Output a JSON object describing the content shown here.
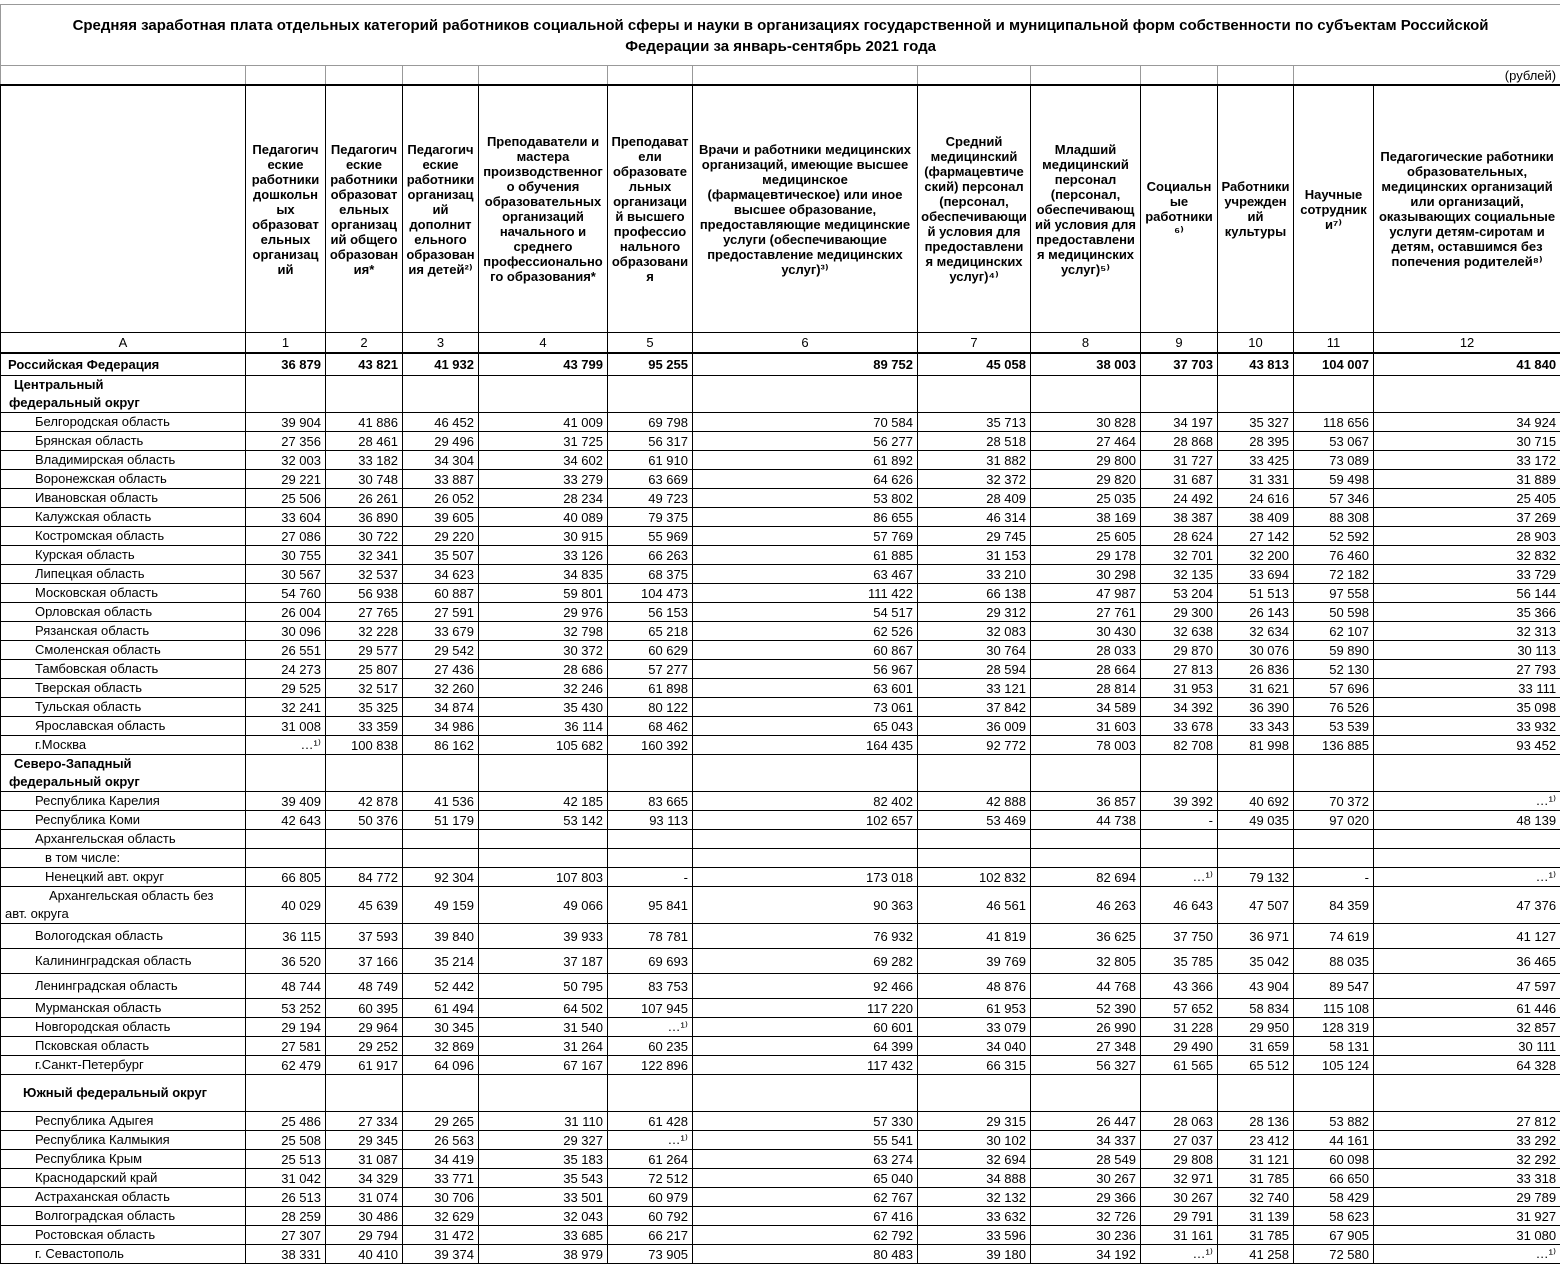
{
  "title": "Средняя заработная плата отдельных категорий работников социальной сферы и науки в организациях государственной и муниципальной форм собственности по субъектам Российской Федерации за январь-сентябрь 2021 года",
  "unit_note": "(рублей)",
  "table": {
    "index_row": [
      "А",
      "1",
      "2",
      "3",
      "4",
      "5",
      "6",
      "7",
      "8",
      "9",
      "10",
      "11",
      "12"
    ],
    "columns": [
      "Педагогические работники дошкольных образовательных организаций",
      "Педагогические работники образовательных организаций общего образования*",
      "Педагогические работники организаций дополнительного образования детей²⁾",
      "Преподаватели и мастера производственного обучения образовательных организаций начального и среднего профессионального образования*",
      "Преподаватели образовательных организаций высшего профессионального образования",
      "Врачи и работники медицинских организаций, имеющие высшее медицинское (фармацевтическое) или иное высшее образование, предоставляющие медицинские услуги (обеспечивающие предоставление медицинских услуг)³⁾",
      "Средний медицинский (фармацевтический) персонал (персонал, обеспечивающий условия для предоставления медицинских услуг)⁴⁾",
      "Младший медицинский персонал (персонал, обеспечивающий условия для предоставления медицинских услуг)⁵⁾",
      "Социальные работники⁶⁾",
      "Работники учреждений культуры",
      "Научные сотрудники⁷⁾",
      "Педагогические работники образовательных, медицинских организаций или организаций, оказывающих социальные услуги детям-сиротам и детям, оставшимся без попечения родителей⁸⁾"
    ],
    "rows": [
      {
        "name": "Российская Федерация",
        "type": "total",
        "indent": 0,
        "values": [
          "36 879",
          "43 821",
          "41 932",
          "43 799",
          "95 255",
          "89 752",
          "45 058",
          "38 003",
          "37 703",
          "43 813",
          "104 007",
          "41 840"
        ]
      },
      {
        "name": "Центральный федеральный округ",
        "type": "sec",
        "indent": 0,
        "values": []
      },
      {
        "name": "Белгородская область",
        "type": "data",
        "indent": 1,
        "values": [
          "39 904",
          "41 886",
          "46 452",
          "41 009",
          "69 798",
          "70 584",
          "35 713",
          "30 828",
          "34 197",
          "35 327",
          "118 656",
          "34 924"
        ]
      },
      {
        "name": "Брянская область",
        "type": "data",
        "indent": 1,
        "values": [
          "27 356",
          "28 461",
          "29 496",
          "31 725",
          "56 317",
          "56 277",
          "28 518",
          "27 464",
          "28 868",
          "28 395",
          "53 067",
          "30 715"
        ]
      },
      {
        "name": "Владимирская область",
        "type": "data",
        "indent": 1,
        "values": [
          "32 003",
          "33 182",
          "34 304",
          "34 602",
          "61 910",
          "61 892",
          "31 882",
          "29 800",
          "31 727",
          "33 425",
          "73 089",
          "33 172"
        ]
      },
      {
        "name": "Воронежская область",
        "type": "data",
        "indent": 1,
        "values": [
          "29 221",
          "30 748",
          "33 887",
          "33 279",
          "63 669",
          "64 626",
          "32 372",
          "29 820",
          "31 687",
          "31 331",
          "59 498",
          "31 889"
        ]
      },
      {
        "name": "Ивановская область",
        "type": "data",
        "indent": 1,
        "values": [
          "25 506",
          "26 261",
          "26 052",
          "28 234",
          "49 723",
          "53 802",
          "28 409",
          "25 035",
          "24 492",
          "24 616",
          "57 346",
          "25 405"
        ]
      },
      {
        "name": "Калужская область",
        "type": "data",
        "indent": 1,
        "values": [
          "33 604",
          "36 890",
          "39 605",
          "40 089",
          "79 375",
          "86 655",
          "46 314",
          "38 169",
          "38 387",
          "38 409",
          "88 308",
          "37 269"
        ]
      },
      {
        "name": "Костромская область",
        "type": "data",
        "indent": 1,
        "values": [
          "27 086",
          "30 722",
          "29 220",
          "30 915",
          "55 969",
          "57 769",
          "29 745",
          "25 605",
          "28 624",
          "27 142",
          "52 592",
          "28 903"
        ]
      },
      {
        "name": "Курская область",
        "type": "data",
        "indent": 1,
        "values": [
          "30 755",
          "32 341",
          "35 507",
          "33 126",
          "66 263",
          "61 885",
          "31 153",
          "29 178",
          "32 701",
          "32 200",
          "76 460",
          "32 832"
        ]
      },
      {
        "name": "Липецкая область",
        "type": "data",
        "indent": 1,
        "values": [
          "30 567",
          "32 537",
          "34 623",
          "34 835",
          "68 375",
          "63 467",
          "33 210",
          "30 298",
          "32 135",
          "33 694",
          "72 182",
          "33 729"
        ]
      },
      {
        "name": "Московская область",
        "type": "data",
        "indent": 1,
        "values": [
          "54 760",
          "56 938",
          "60 887",
          "59 801",
          "104 473",
          "111 422",
          "66 138",
          "47 987",
          "53 204",
          "51 513",
          "97 558",
          "56 144"
        ]
      },
      {
        "name": "Орловская область",
        "type": "data",
        "indent": 1,
        "values": [
          "26 004",
          "27 765",
          "27 591",
          "29 976",
          "56 153",
          "54 517",
          "29 312",
          "27 761",
          "29 300",
          "26 143",
          "50 598",
          "35 366"
        ]
      },
      {
        "name": "Рязанская область",
        "type": "data",
        "indent": 1,
        "values": [
          "30 096",
          "32 228",
          "33 679",
          "32 798",
          "65 218",
          "62 526",
          "32 083",
          "30 430",
          "32 638",
          "32 634",
          "62 107",
          "32 313"
        ]
      },
      {
        "name": "Смоленская область",
        "type": "data",
        "indent": 1,
        "values": [
          "26 551",
          "29 577",
          "29 542",
          "30 372",
          "60 629",
          "60 867",
          "30 764",
          "28 033",
          "29 870",
          "30 076",
          "59 890",
          "30 113"
        ]
      },
      {
        "name": "Тамбовская область",
        "type": "data",
        "indent": 1,
        "values": [
          "24 273",
          "25 807",
          "27 436",
          "28 686",
          "57 277",
          "56 967",
          "28 594",
          "28 664",
          "27 813",
          "26 836",
          "52 130",
          "27 793"
        ]
      },
      {
        "name": "Тверская область",
        "type": "data",
        "indent": 1,
        "values": [
          "29 525",
          "32 517",
          "32 260",
          "32 246",
          "61 898",
          "63 601",
          "33 121",
          "28 814",
          "31 953",
          "31 621",
          "57 696",
          "33 111"
        ]
      },
      {
        "name": "Тульская область",
        "type": "data",
        "indent": 1,
        "values": [
          "32 241",
          "35 325",
          "34 874",
          "35 430",
          "80 122",
          "73 061",
          "37 842",
          "34 589",
          "34 392",
          "36 390",
          "76 526",
          "35 098"
        ]
      },
      {
        "name": "Ярославская область",
        "type": "data",
        "indent": 1,
        "values": [
          "31 008",
          "33 359",
          "34 986",
          "36 114",
          "68 462",
          "65 043",
          "36 009",
          "31 603",
          "33 678",
          "33 343",
          "53 539",
          "33 932"
        ]
      },
      {
        "name": "г.Москва",
        "type": "data",
        "indent": 1,
        "values": [
          "…¹⁾",
          "100 838",
          "86 162",
          "105 682",
          "160 392",
          "164 435",
          "92 772",
          "78 003",
          "82 708",
          "81 998",
          "136 885",
          "93 452"
        ]
      },
      {
        "name": "Северо-Западный федеральный округ",
        "type": "sec",
        "indent": 0,
        "values": []
      },
      {
        "name": "Республика Карелия",
        "type": "data",
        "indent": 1,
        "values": [
          "39 409",
          "42 878",
          "41 536",
          "42 185",
          "83 665",
          "82 402",
          "42 888",
          "36 857",
          "39 392",
          "40 692",
          "70 372",
          "…¹⁾"
        ]
      },
      {
        "name": "Республика Коми",
        "type": "data",
        "indent": 1,
        "values": [
          "42 643",
          "50 376",
          "51 179",
          "53 142",
          "93 113",
          "102 657",
          "53 469",
          "44 738",
          "-",
          "49 035",
          "97 020",
          "48 139"
        ]
      },
      {
        "name": "Архангельская область",
        "type": "data",
        "indent": 1,
        "values": []
      },
      {
        "name": "в том числе:",
        "type": "data",
        "indent": 2,
        "values": []
      },
      {
        "name": "Ненецкий авт. округ",
        "type": "data",
        "indent": 2,
        "values": [
          "66 805",
          "84 772",
          "92 304",
          "107 803",
          "-",
          "173 018",
          "102 832",
          "82 694",
          "…¹⁾",
          "79 132",
          "-",
          "…¹⁾"
        ]
      },
      {
        "name": "Архангельская область без авт. округа",
        "type": "wrap",
        "indent": 0,
        "values": [
          "40 029",
          "45 639",
          "49 159",
          "49 066",
          "95 841",
          "90 363",
          "46 561",
          "46 263",
          "46 643",
          "47 507",
          "84 359",
          "47 376"
        ]
      },
      {
        "name": "Вологодская область",
        "type": "tall",
        "indent": 1,
        "values": [
          "36 115",
          "37 593",
          "39 840",
          "39 933",
          "78 781",
          "76 932",
          "41 819",
          "36 625",
          "37 750",
          "36 971",
          "74 619",
          "41 127"
        ]
      },
      {
        "name": "Калининградская область",
        "type": "tall",
        "indent": 1,
        "values": [
          "36 520",
          "37 166",
          "35 214",
          "37 187",
          "69 693",
          "69 282",
          "39 769",
          "32 805",
          "35 785",
          "35 042",
          "88 035",
          "36 465"
        ]
      },
      {
        "name": "Ленинградская область",
        "type": "tall",
        "indent": 1,
        "values": [
          "48 744",
          "48 749",
          "52 442",
          "50 795",
          "83 753",
          "92 466",
          "48 876",
          "44 768",
          "43 366",
          "43 904",
          "89 547",
          "47 597"
        ]
      },
      {
        "name": "Мурманская область",
        "type": "data",
        "indent": 1,
        "values": [
          "53 252",
          "60 395",
          "61 494",
          "64 502",
          "107 945",
          "117 220",
          "61 953",
          "52 390",
          "57 652",
          "58 834",
          "115 108",
          "61 446"
        ]
      },
      {
        "name": "Новгородская область",
        "type": "data",
        "indent": 1,
        "values": [
          "29 194",
          "29 964",
          "30 345",
          "31 540",
          "…¹⁾",
          "60 601",
          "33 079",
          "26 990",
          "31 228",
          "29 950",
          "128 319",
          "32 857"
        ]
      },
      {
        "name": "Псковская область",
        "type": "data",
        "indent": 1,
        "values": [
          "27 581",
          "29 252",
          "32 869",
          "31 264",
          "60 235",
          "64 399",
          "34 040",
          "27 348",
          "29 490",
          "31 659",
          "58 131",
          "30 111"
        ]
      },
      {
        "name": "г.Санкт-Петербург",
        "type": "data",
        "indent": 1,
        "values": [
          "62 479",
          "61 917",
          "64 096",
          "67 167",
          "122 896",
          "117 432",
          "66 315",
          "56 327",
          "61 565",
          "65 512",
          "105 124",
          "64 328"
        ]
      },
      {
        "name": "Южный федеральный округ",
        "type": "sec1",
        "indent": 0,
        "values": []
      },
      {
        "name": "Республика Адыгея",
        "type": "data",
        "indent": 1,
        "values": [
          "25 486",
          "27 334",
          "29 265",
          "31 110",
          "61 428",
          "57 330",
          "29 315",
          "26 447",
          "28 063",
          "28 136",
          "53 882",
          "27 812"
        ]
      },
      {
        "name": "Республика Калмыкия",
        "type": "data",
        "indent": 1,
        "values": [
          "25 508",
          "29 345",
          "26 563",
          "29 327",
          "…¹⁾",
          "55 541",
          "30 102",
          "34 337",
          "27 037",
          "23 412",
          "44 161",
          "33 292"
        ]
      },
      {
        "name": "Республика Крым",
        "type": "data",
        "indent": 1,
        "values": [
          "25 513",
          "31 087",
          "34 419",
          "35 183",
          "61 264",
          "63 274",
          "32 694",
          "28 549",
          "29 808",
          "31 121",
          "60 098",
          "32 292"
        ]
      },
      {
        "name": "Краснодарский край",
        "type": "data",
        "indent": 1,
        "values": [
          "31 042",
          "34 329",
          "33 771",
          "35 543",
          "72 512",
          "65 040",
          "34 888",
          "30 267",
          "32 971",
          "31 785",
          "66 650",
          "33 318"
        ]
      },
      {
        "name": "Астраханская область",
        "type": "data",
        "indent": 1,
        "values": [
          "26 513",
          "31 074",
          "30 706",
          "33 501",
          "60 979",
          "62 767",
          "32 132",
          "29 366",
          "30 267",
          "32 740",
          "58 429",
          "29 789"
        ]
      },
      {
        "name": "Волгоградская область",
        "type": "data",
        "indent": 1,
        "values": [
          "28 259",
          "30 486",
          "32 629",
          "32 043",
          "60 792",
          "67 416",
          "33 632",
          "32 726",
          "29 791",
          "31 139",
          "58 623",
          "31 927"
        ]
      },
      {
        "name": "Ростовская область",
        "type": "data",
        "indent": 1,
        "values": [
          "27 307",
          "29 794",
          "31 472",
          "33 685",
          "66 217",
          "62 792",
          "33 596",
          "30 236",
          "31 161",
          "31 785",
          "67 905",
          "31 080"
        ]
      },
      {
        "name": "г. Севастополь",
        "type": "data",
        "indent": 1,
        "values": [
          "38 331",
          "40 410",
          "39 374",
          "38 979",
          "73 905",
          "80 483",
          "39 180",
          "34 192",
          "…¹⁾",
          "41 258",
          "72 580",
          "…¹⁾"
        ]
      }
    ]
  }
}
